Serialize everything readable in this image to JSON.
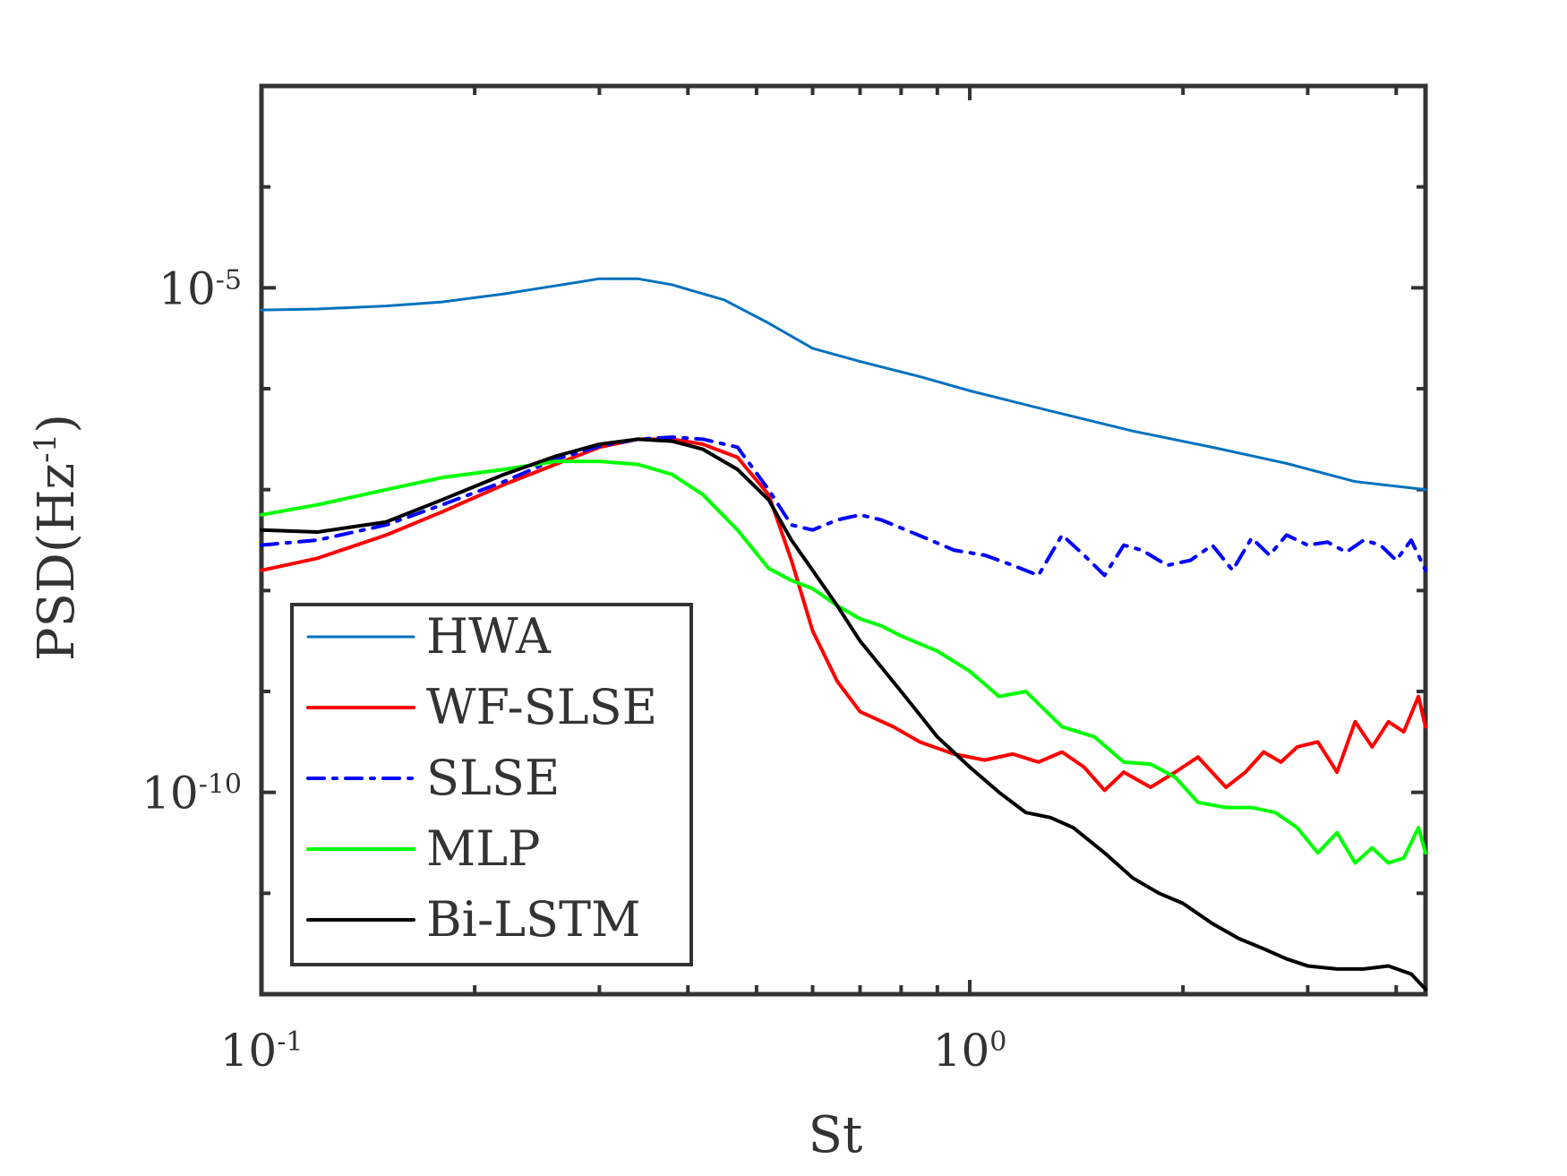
{
  "chart_data": {
    "type": "line",
    "title": "",
    "xlabel": "St",
    "ylabel": {
      "base": "PSD(Hz",
      "exponent": "-1",
      "close": ")"
    },
    "xscale": "log",
    "yscale": "log",
    "xlim": [
      0.1,
      4.4
    ],
    "ylim_exponent": [
      -12,
      -3
    ],
    "grid": false,
    "legend_placement": "bottom-left",
    "x_ticks": [
      {
        "value": 0.1,
        "base": "10",
        "exponent": "-1"
      },
      {
        "value": 1,
        "base": "10",
        "exponent": "0"
      }
    ],
    "y_ticks": [
      {
        "exponent_value": -5,
        "base": "10",
        "exponent": "-5"
      },
      {
        "exponent_value": -10,
        "base": "10",
        "exponent": "-10"
      }
    ],
    "series": [
      {
        "name": "HWA",
        "color": "#0072bd",
        "dash": "solid",
        "width": 3,
        "x": [
          0.1,
          0.12,
          0.15,
          0.18,
          0.22,
          0.26,
          0.3,
          0.34,
          0.38,
          0.45,
          0.52,
          0.6,
          0.7,
          0.85,
          1.0,
          1.3,
          1.7,
          2.2,
          2.8,
          3.5,
          4.4
        ],
        "y": [
          -5.22,
          -5.21,
          -5.18,
          -5.14,
          -5.06,
          -4.98,
          -4.91,
          -4.91,
          -4.97,
          -5.12,
          -5.35,
          -5.6,
          -5.73,
          -5.88,
          -6.02,
          -6.22,
          -6.42,
          -6.58,
          -6.74,
          -6.92,
          -7.0
        ]
      },
      {
        "name": "WF-SLSE",
        "color": "#ff0000",
        "dash": "solid",
        "width": 4,
        "x": [
          0.1,
          0.12,
          0.15,
          0.18,
          0.22,
          0.26,
          0.3,
          0.34,
          0.38,
          0.42,
          0.47,
          0.52,
          0.56,
          0.6,
          0.65,
          0.7,
          0.78,
          0.85,
          0.95,
          1.05,
          1.15,
          1.25,
          1.35,
          1.45,
          1.55,
          1.65,
          1.8,
          1.95,
          2.1,
          2.3,
          2.45,
          2.6,
          2.75,
          2.9,
          3.1,
          3.3,
          3.5,
          3.7,
          3.9,
          4.1,
          4.3,
          4.4
        ],
        "y": [
          -7.8,
          -7.68,
          -7.45,
          -7.22,
          -6.95,
          -6.75,
          -6.58,
          -6.5,
          -6.5,
          -6.55,
          -6.68,
          -7.05,
          -7.7,
          -8.4,
          -8.9,
          -9.2,
          -9.35,
          -9.5,
          -9.62,
          -9.68,
          -9.62,
          -9.7,
          -9.6,
          -9.75,
          -9.98,
          -9.8,
          -9.95,
          -9.8,
          -9.65,
          -9.95,
          -9.8,
          -9.6,
          -9.7,
          -9.55,
          -9.5,
          -9.8,
          -9.3,
          -9.55,
          -9.3,
          -9.4,
          -9.05,
          -9.35
        ]
      },
      {
        "name": "SLSE",
        "color": "#0000ff",
        "dash": "dashdot",
        "width": 4,
        "x": [
          0.1,
          0.12,
          0.15,
          0.18,
          0.22,
          0.26,
          0.3,
          0.34,
          0.38,
          0.42,
          0.47,
          0.52,
          0.56,
          0.6,
          0.65,
          0.7,
          0.75,
          0.8,
          0.88,
          0.95,
          1.05,
          1.15,
          1.25,
          1.35,
          1.45,
          1.55,
          1.65,
          1.75,
          1.9,
          2.05,
          2.2,
          2.35,
          2.5,
          2.65,
          2.8,
          3.0,
          3.2,
          3.4,
          3.6,
          3.8,
          4.0,
          4.2,
          4.4
        ],
        "y": [
          -7.55,
          -7.5,
          -7.35,
          -7.15,
          -6.92,
          -6.7,
          -6.57,
          -6.5,
          -6.48,
          -6.5,
          -6.58,
          -7.0,
          -7.35,
          -7.4,
          -7.3,
          -7.25,
          -7.3,
          -7.38,
          -7.5,
          -7.6,
          -7.65,
          -7.75,
          -7.85,
          -7.45,
          -7.65,
          -7.85,
          -7.55,
          -7.6,
          -7.75,
          -7.7,
          -7.55,
          -7.8,
          -7.48,
          -7.65,
          -7.45,
          -7.55,
          -7.52,
          -7.62,
          -7.5,
          -7.55,
          -7.7,
          -7.5,
          -7.8
        ]
      },
      {
        "name": "MLP",
        "color": "#00ff00",
        "dash": "solid",
        "width": 4,
        "x": [
          0.1,
          0.12,
          0.15,
          0.18,
          0.22,
          0.26,
          0.3,
          0.34,
          0.38,
          0.42,
          0.47,
          0.52,
          0.56,
          0.6,
          0.65,
          0.7,
          0.75,
          0.8,
          0.9,
          1.0,
          1.1,
          1.2,
          1.35,
          1.5,
          1.65,
          1.8,
          1.95,
          2.1,
          2.3,
          2.5,
          2.7,
          2.9,
          3.1,
          3.3,
          3.5,
          3.7,
          3.9,
          4.1,
          4.3,
          4.4
        ],
        "y": [
          -7.25,
          -7.15,
          -7.0,
          -6.88,
          -6.8,
          -6.72,
          -6.72,
          -6.75,
          -6.85,
          -7.05,
          -7.4,
          -7.78,
          -7.9,
          -7.98,
          -8.15,
          -8.28,
          -8.35,
          -8.45,
          -8.6,
          -8.8,
          -9.05,
          -9.0,
          -9.35,
          -9.45,
          -9.7,
          -9.72,
          -9.85,
          -10.1,
          -10.15,
          -10.15,
          -10.2,
          -10.35,
          -10.6,
          -10.4,
          -10.7,
          -10.55,
          -10.7,
          -10.65,
          -10.35,
          -10.6
        ]
      },
      {
        "name": "Bi-LSTM",
        "color": "#000000",
        "dash": "solid",
        "width": 4,
        "x": [
          0.1,
          0.12,
          0.15,
          0.18,
          0.22,
          0.26,
          0.3,
          0.34,
          0.38,
          0.42,
          0.47,
          0.52,
          0.56,
          0.6,
          0.65,
          0.7,
          0.8,
          0.9,
          1.0,
          1.1,
          1.2,
          1.3,
          1.4,
          1.55,
          1.7,
          1.85,
          2.0,
          2.2,
          2.4,
          2.6,
          2.8,
          3.0,
          3.3,
          3.6,
          3.9,
          4.2,
          4.4
        ],
        "y": [
          -7.4,
          -7.42,
          -7.32,
          -7.1,
          -6.85,
          -6.67,
          -6.55,
          -6.5,
          -6.52,
          -6.6,
          -6.8,
          -7.1,
          -7.5,
          -7.8,
          -8.15,
          -8.5,
          -9.0,
          -9.45,
          -9.75,
          -10.0,
          -10.2,
          -10.25,
          -10.35,
          -10.6,
          -10.85,
          -11.0,
          -11.1,
          -11.3,
          -11.45,
          -11.55,
          -11.65,
          -11.72,
          -11.75,
          -11.75,
          -11.72,
          -11.8,
          -11.95
        ]
      }
    ]
  }
}
